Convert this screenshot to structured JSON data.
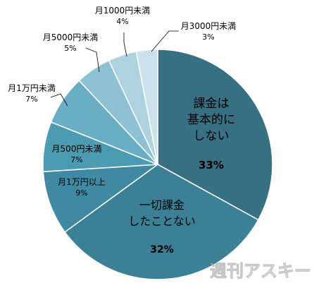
{
  "chart_data": {
    "type": "pie",
    "start": "12 o'clock",
    "direction": "clockwise",
    "slices": [
      {
        "label": "課金は基本的にしない",
        "lines": [
          "課金は",
          "基本的に",
          "しない"
        ],
        "value": 33,
        "value_label": "33%",
        "color": "#376f83"
      },
      {
        "label": "一切課金したことない",
        "lines": [
          "一切課金",
          "したことない"
        ],
        "value": 32,
        "value_label": "32%",
        "color": "#3b8096"
      },
      {
        "label": "月1万円以上",
        "lines": [
          "月1万円以上"
        ],
        "value": 9,
        "value_label": "9%",
        "color": "#3f8aa2"
      },
      {
        "label": "月500円未満",
        "lines": [
          "月500円未満"
        ],
        "value": 7,
        "value_label": "7%",
        "color": "#4b9bb3"
      },
      {
        "label": "月1万円未満",
        "lines": [
          "月1万円未満"
        ],
        "value": 7,
        "value_label": "7%",
        "color": "#69aec5"
      },
      {
        "label": "月5000円未満",
        "lines": [
          "月5000円未満"
        ],
        "value": 5,
        "value_label": "5%",
        "color": "#8ec1d3"
      },
      {
        "label": "月1000円未満",
        "lines": [
          "月1000円未満"
        ],
        "value": 4,
        "value_label": "4%",
        "color": "#aed2df"
      },
      {
        "label": "月3000円未満",
        "lines": [
          "月3000円未満"
        ],
        "value": 3,
        "value_label": "3%",
        "color": "#cbe2ea"
      }
    ]
  },
  "watermark": "週刊アスキー"
}
